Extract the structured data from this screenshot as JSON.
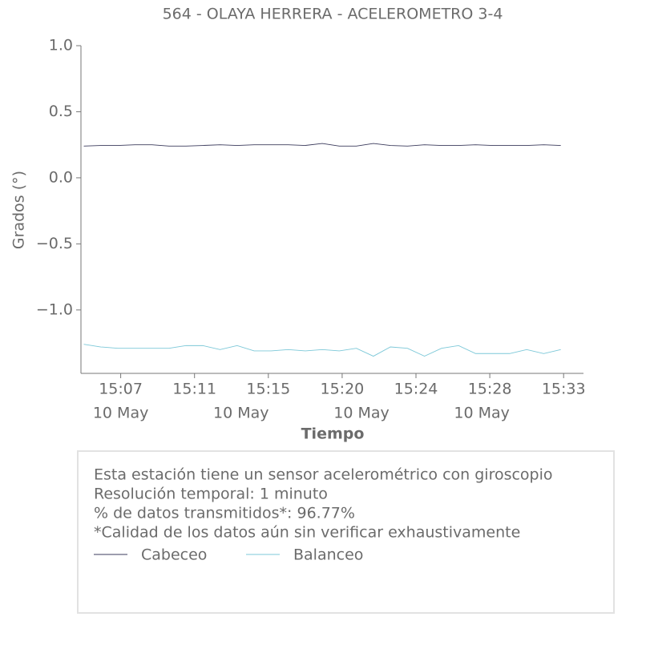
{
  "chart_data": {
    "type": "line",
    "title": "564 - OLAYA HERRERA - ACELEROMETRO 3-4",
    "xlabel": "Tiempo",
    "ylabel": "Grados (°)",
    "x": [
      "15:05:00",
      "15:06:00",
      "15:07:00",
      "15:08:00",
      "15:09:00",
      "15:10:00",
      "15:11:00",
      "15:12:00",
      "15:13:00",
      "15:14:00",
      "15:15:00",
      "15:16:00",
      "15:17:00",
      "15:18:00",
      "15:19:00",
      "15:20:00",
      "15:21:00",
      "15:22:00",
      "15:23:00",
      "15:24:00",
      "15:25:00",
      "15:26:00",
      "15:27:00",
      "15:28:00",
      "15:29:00",
      "15:30:00",
      "15:31:00",
      "15:32:00",
      "15:33:00"
    ],
    "series": [
      {
        "name": "Cabeceo",
        "color": "#3b3b5c",
        "values": [
          0.24,
          0.245,
          0.245,
          0.25,
          0.25,
          0.24,
          0.24,
          0.245,
          0.25,
          0.245,
          0.25,
          0.25,
          0.25,
          0.245,
          0.26,
          0.24,
          0.24,
          0.26,
          0.245,
          0.24,
          0.25,
          0.245,
          0.245,
          0.25,
          0.245,
          0.245,
          0.245,
          0.25,
          0.245
        ]
      },
      {
        "name": "Balanceo",
        "color": "#7cc8d8",
        "values": [
          -1.26,
          -1.28,
          -1.29,
          -1.29,
          -1.29,
          -1.29,
          -1.27,
          -1.27,
          -1.3,
          -1.27,
          -1.31,
          -1.31,
          -1.3,
          -1.31,
          -1.3,
          -1.31,
          -1.29,
          -1.35,
          -1.28,
          -1.29,
          -1.35,
          -1.29,
          -1.27,
          -1.33,
          -1.33,
          -1.33,
          -1.3,
          -1.33,
          -1.3
        ]
      }
    ],
    "xlim": [
      "15:04:50",
      "15:34:20"
    ],
    "xticks": [
      {
        "value": "15:07:10",
        "label": "15:07"
      },
      {
        "value": "15:11:30",
        "label": "15:11"
      },
      {
        "value": "15:15:50",
        "label": "15:15"
      },
      {
        "value": "15:20:10",
        "label": "15:20"
      },
      {
        "value": "15:24:30",
        "label": "15:24"
      },
      {
        "value": "15:28:50",
        "label": "15:28"
      },
      {
        "value": "15:33:10",
        "label": "15:33"
      }
    ],
    "date_ticks": [
      {
        "value": "15:07:10",
        "label": "10 May"
      },
      {
        "value": "15:14:14",
        "label": "10 May"
      },
      {
        "value": "15:21:18",
        "label": "10 May"
      },
      {
        "value": "15:28:22",
        "label": "10 May"
      }
    ],
    "ylim": [
      -1.48,
      1.0
    ],
    "yticks": [
      {
        "value": -1.0,
        "label": "−1.0"
      },
      {
        "value": -0.5,
        "label": "−0.5"
      },
      {
        "value": 0.0,
        "label": "0.0"
      },
      {
        "value": 0.5,
        "label": "0.5"
      },
      {
        "value": 1.0,
        "label": "1.0"
      }
    ],
    "notes": [
      "Esta estación tiene un sensor acelerométrico con giroscopio",
      "Resolución temporal: 1 minuto",
      "% de datos transmitidos*: 96.77%",
      "*Calidad de los datos aún sin verificar exhaustivamente"
    ]
  }
}
